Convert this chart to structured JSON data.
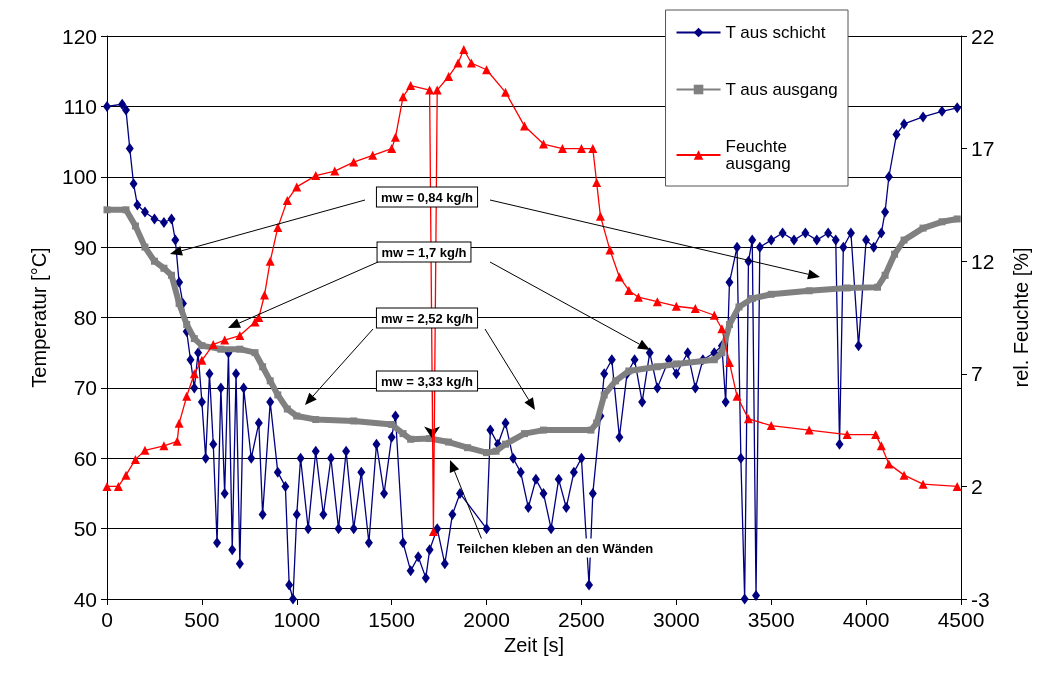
{
  "chart_data": {
    "type": "line",
    "xlabel": "Zeit [s]",
    "ylabel": "Temperatur [°C]",
    "y2label": "rel. Feuchte [%]",
    "xlim": [
      0,
      4500
    ],
    "xticks": [
      0,
      500,
      1000,
      1500,
      2000,
      2500,
      3000,
      3500,
      4000,
      4500
    ],
    "ylim": [
      40,
      120
    ],
    "yticks": [
      40,
      50,
      60,
      70,
      80,
      90,
      100,
      110,
      120
    ],
    "y2lim": [
      -3,
      22
    ],
    "y2ticks": [
      -3,
      2,
      7,
      12,
      17,
      22
    ],
    "grid": "y",
    "legend": "top right",
    "annotations": [
      "mw = 0,84 kg/h",
      "mw = 1,7 kg/h",
      "mw = 2,52 kg/h",
      {
        "text": "mw = 3,33 kg/h",
        "x": 1713,
        "y": 62.8
      },
      "Teilchen kleben an den Wänden"
    ],
    "series": [
      {
        "name": "T aus schicht",
        "color": "#000080",
        "marker": "diamond",
        "x": [
          0,
          80,
          100,
          120,
          140,
          160,
          200,
          250,
          300,
          340,
          360,
          380,
          400,
          420,
          440,
          460,
          480,
          500,
          520,
          540,
          560,
          580,
          600,
          620,
          640,
          660,
          680,
          700,
          720,
          760,
          800,
          820,
          860,
          900,
          940,
          960,
          980,
          1000,
          1020,
          1060,
          1100,
          1140,
          1180,
          1220,
          1260,
          1300,
          1340,
          1380,
          1420,
          1460,
          1500,
          1520,
          1560,
          1600,
          1640,
          1680,
          1700,
          1740,
          1780,
          1820,
          1860,
          1900,
          1960,
          2000,
          2020,
          2060,
          2100,
          2140,
          2180,
          2220,
          2260,
          2300,
          2340,
          2380,
          2420,
          2460,
          2500,
          2520,
          2540,
          2560,
          2600,
          2620,
          2660,
          2700,
          2740,
          2780,
          2820,
          2860,
          2900,
          2960,
          3000,
          3060,
          3100,
          3140,
          3200,
          3240,
          3260,
          3280,
          3320,
          3340,
          3360,
          3380,
          3400,
          3420,
          3440,
          3500,
          3560,
          3620,
          3680,
          3740,
          3800,
          3840,
          3860,
          3880,
          3920,
          3960,
          4000,
          4040,
          4080,
          4100,
          4120,
          4160,
          4200,
          4300,
          4400,
          4480
        ],
        "values": [
          110,
          110.3,
          109.5,
          104,
          99,
          96,
          95,
          94,
          93.5,
          94,
          91,
          85,
          82,
          78,
          74,
          70,
          75,
          68,
          60,
          72,
          62,
          48,
          70,
          55,
          75,
          47,
          72,
          45,
          70,
          60,
          65,
          52,
          68,
          58,
          56,
          42,
          40,
          52,
          60,
          50,
          61,
          52,
          60,
          50,
          61,
          50,
          58,
          48,
          62,
          55,
          63,
          66,
          48,
          44,
          46,
          43,
          47,
          50,
          45,
          52,
          55,
          null,
          null,
          50,
          64,
          62,
          65,
          60,
          58,
          53,
          57,
          55,
          50,
          57,
          53,
          58,
          60,
          null,
          42,
          55,
          66,
          72,
          74,
          63,
          72,
          74,
          68,
          75,
          70,
          74,
          72,
          75,
          70,
          74,
          75,
          76,
          68,
          85,
          90,
          60,
          40,
          88,
          91,
          40.5,
          90,
          91,
          92,
          91,
          92,
          91,
          92,
          91,
          62,
          90,
          92,
          76,
          91,
          90,
          92,
          95,
          100,
          106,
          107.5,
          108.5,
          109.3,
          109.8
        ]
      },
      {
        "name": "T aus ausgang",
        "color": "#808080",
        "marker": "square",
        "x": [
          0,
          100,
          150,
          200,
          250,
          300,
          340,
          380,
          420,
          460,
          500,
          600,
          700,
          780,
          820,
          860,
          900,
          950,
          1000,
          1100,
          1300,
          1500,
          1560,
          1600,
          1700,
          1800,
          1900,
          2000,
          2050,
          2100,
          2200,
          2300,
          2550,
          2580,
          2620,
          2680,
          2750,
          2900,
          3000,
          3200,
          3240,
          3280,
          3330,
          3400,
          3500,
          3700,
          3900,
          4060,
          4100,
          4150,
          4200,
          4300,
          4400,
          4480
        ],
        "values": [
          95.3,
          95.3,
          93,
          90,
          88,
          87,
          86,
          82,
          79,
          77,
          76,
          75.5,
          75.5,
          75,
          73,
          71,
          69,
          67,
          66,
          65.5,
          65.3,
          64.8,
          63.5,
          62.7,
          62.8,
          62.3,
          61.5,
          60.8,
          61,
          62,
          63.5,
          64,
          64,
          65,
          69,
          71,
          72.4,
          73,
          73.4,
          74,
          75,
          79,
          81.5,
          82.7,
          83.3,
          83.8,
          84.2,
          84.3,
          86,
          89,
          91,
          92.7,
          93.6,
          94
        ]
      },
      {
        "name": "Feuchte ausgang",
        "color": "#ff0000",
        "marker": "triangle",
        "axis": "y2",
        "x": [
          0,
          60,
          100,
          150,
          200,
          300,
          370,
          380,
          420,
          460,
          500,
          560,
          620,
          700,
          780,
          800,
          830,
          860,
          900,
          950,
          1000,
          1100,
          1200,
          1300,
          1400,
          1500,
          1520,
          1560,
          1600,
          1700,
          1720,
          1740,
          1800,
          1850,
          1880,
          1920,
          2000,
          2100,
          2200,
          2300,
          2400,
          2500,
          2560,
          2580,
          2600,
          2650,
          2700,
          2750,
          2800,
          2900,
          3000,
          3100,
          3200,
          3240,
          3280,
          3320,
          3380,
          3500,
          3700,
          3900,
          4050,
          4080,
          4120,
          4200,
          4300,
          4480
        ],
        "values": [
          2,
          2,
          2.5,
          3.2,
          3.6,
          3.8,
          4,
          4.8,
          6,
          7,
          7.6,
          8.3,
          8.5,
          8.7,
          9.3,
          9.5,
          10.5,
          12,
          13.5,
          14.7,
          15.3,
          15.8,
          16,
          16.4,
          16.7,
          17,
          17.5,
          19.3,
          19.8,
          19.6,
          0,
          19.6,
          20.2,
          20.8,
          21.4,
          20.8,
          20.5,
          19.5,
          18,
          17.2,
          17,
          17,
          17,
          15.5,
          14,
          12.5,
          11.3,
          10.7,
          10.4,
          10.2,
          10,
          9.9,
          9.6,
          9,
          7.5,
          6,
          5,
          4.7,
          4.5,
          4.3,
          4.3,
          3.8,
          3,
          2.5,
          2.1,
          2
        ]
      }
    ]
  }
}
